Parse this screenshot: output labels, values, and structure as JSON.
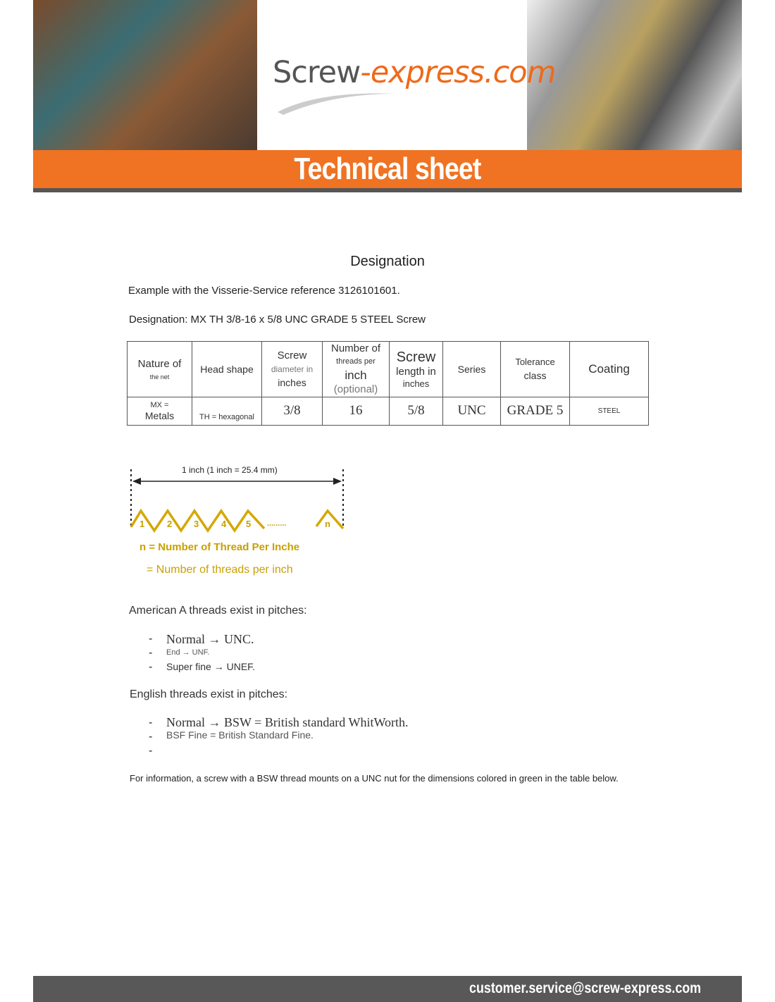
{
  "header": {
    "logo_part1": "Screw",
    "logo_part2": "-express.com",
    "banner_title": "Technical sheet"
  },
  "title": "Designation",
  "intro": "Example with the Visserie-Service reference 3126101601.",
  "designation": "Designation: MX TH 3/8-16 x 5/8 UNC GRADE 5 STEEL Screw",
  "table": {
    "headers": [
      {
        "main": "Nature of",
        "sub": "the net"
      },
      {
        "main": "Head shape"
      },
      {
        "l1": "Screw",
        "l2": "diameter in",
        "l3": "inches"
      },
      {
        "l1": "Number of",
        "l2": "threads per",
        "l3": "inch",
        "l4": "(optional)"
      },
      {
        "l1": "Screw",
        "l2": "length in",
        "l3": "inches"
      },
      {
        "main": "Series"
      },
      {
        "l1": "Tolerance",
        "l2": "class"
      },
      {
        "main": "Coating"
      }
    ],
    "row": [
      {
        "l1": "MX =",
        "l2": "Metals"
      },
      "TH = hexagonal",
      "3/8",
      "16",
      "5/8",
      "UNC",
      "GRADE 5",
      "STEEL"
    ]
  },
  "diagram": {
    "span_label": "1 inch (1 inch = 25.4 mm)",
    "thread_labels": [
      "1",
      "2",
      "3",
      "4",
      "5",
      "n"
    ],
    "ellipsis": ".........",
    "line1": "n = Number of Thread Per Inche",
    "line2": "= Number of threads per inch",
    "thread_color": "#d4a800"
  },
  "american": {
    "heading": "American A threads exist in pitches:",
    "items": [
      "Normal → UNC.",
      "End → UNF.",
      "Super fine → UNEF."
    ]
  },
  "english": {
    "heading": "English threads exist in pitches:",
    "items": [
      "Normal → BSW = British standard WhitWorth.",
      "BSF Fine = British Standard Fine.",
      ""
    ]
  },
  "note": "For information, a screw with a BSW thread mounts on a UNC nut for the dimensions colored in green in the table below.",
  "footer": {
    "email": "customer.service@screw-express.com"
  },
  "colors": {
    "orange": "#ef7322",
    "footer_grey": "#585858",
    "gold": "#c9a000"
  }
}
